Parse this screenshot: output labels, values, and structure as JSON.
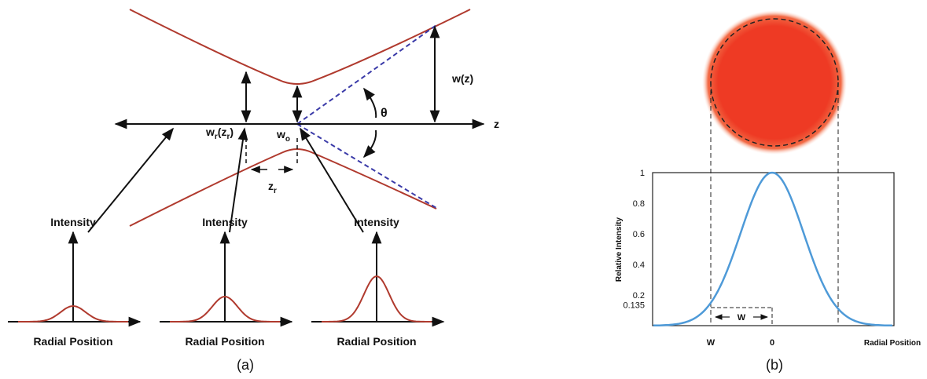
{
  "panel_a": {
    "caption": "(a)",
    "axis_label": "z",
    "waist_label": {
      "main": "w",
      "sub": "o"
    },
    "rayleigh_width_label": {
      "parts": [
        "w",
        "r",
        "(z",
        "r",
        ")"
      ]
    },
    "rayleigh_range_label": {
      "main": "z",
      "sub": "r"
    },
    "beam_width_label": "w(z)",
    "angle_label": "θ",
    "profiles": [
      {
        "y_label": "Intensity",
        "x_label": "Radial Position"
      },
      {
        "y_label": "Intensity",
        "x_label": "Radial Position"
      },
      {
        "y_label": "Intensity",
        "x_label": "Radial Position"
      }
    ]
  },
  "panel_b": {
    "caption": "(b)",
    "y_label": "Relative Intensity",
    "x_label": "Radial Position",
    "yticks": [
      0.135,
      0.2,
      0.4,
      0.6,
      0.8,
      1
    ],
    "width_label": "W",
    "x_tick_labels": [
      "W",
      "0"
    ]
  }
}
